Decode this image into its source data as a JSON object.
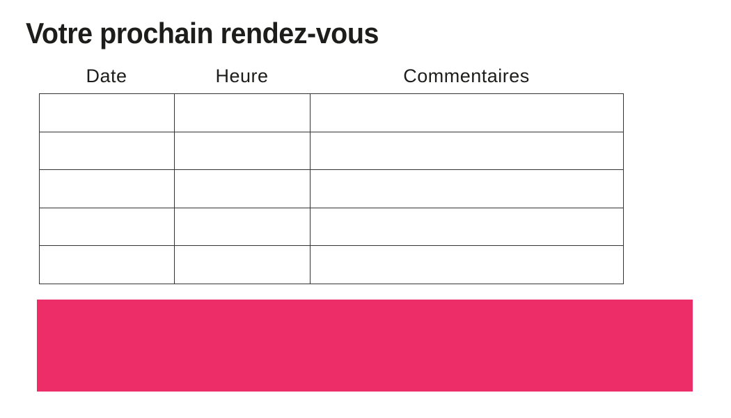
{
  "page": {
    "title": "Votre prochain rendez-vous",
    "background_color": "#ffffff",
    "text_color": "#1d1d1b"
  },
  "table": {
    "headers": [
      "Date",
      "Heure",
      "Commentaires"
    ],
    "rows": [
      [
        "",
        "",
        ""
      ],
      [
        "",
        "",
        ""
      ],
      [
        "",
        "",
        ""
      ],
      [
        "",
        "",
        ""
      ],
      [
        "",
        "",
        ""
      ]
    ],
    "border_color": "#333333"
  },
  "banner": {
    "color": "#ed2d68",
    "label": ""
  }
}
